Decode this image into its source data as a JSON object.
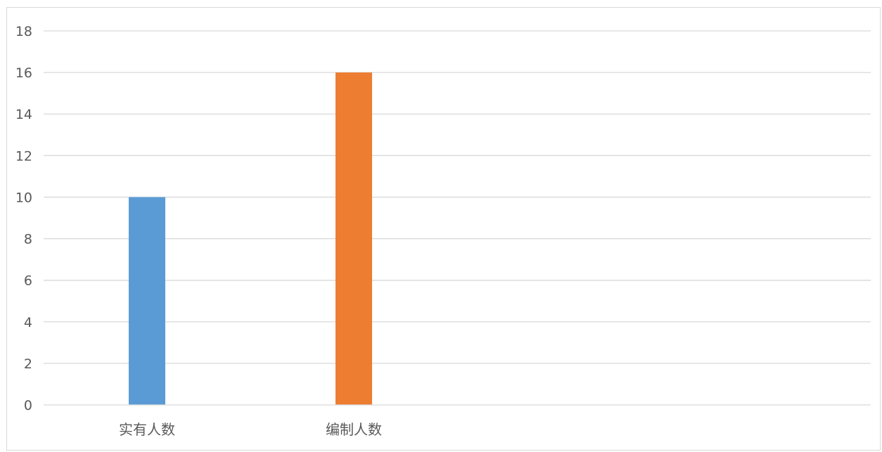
{
  "chart_data": {
    "type": "bar",
    "title": "",
    "xlabel": "",
    "ylabel": "",
    "ylim": [
      0,
      18
    ],
    "yticks": [
      0,
      2,
      4,
      6,
      8,
      10,
      12,
      14,
      16,
      18
    ],
    "categories": [
      "实有人数",
      "编制人数",
      "",
      ""
    ],
    "values": [
      10,
      16,
      null,
      null
    ],
    "bar_colors": [
      "#5b9bd5",
      "#ed7d31"
    ],
    "grid": true,
    "legend": "none"
  }
}
